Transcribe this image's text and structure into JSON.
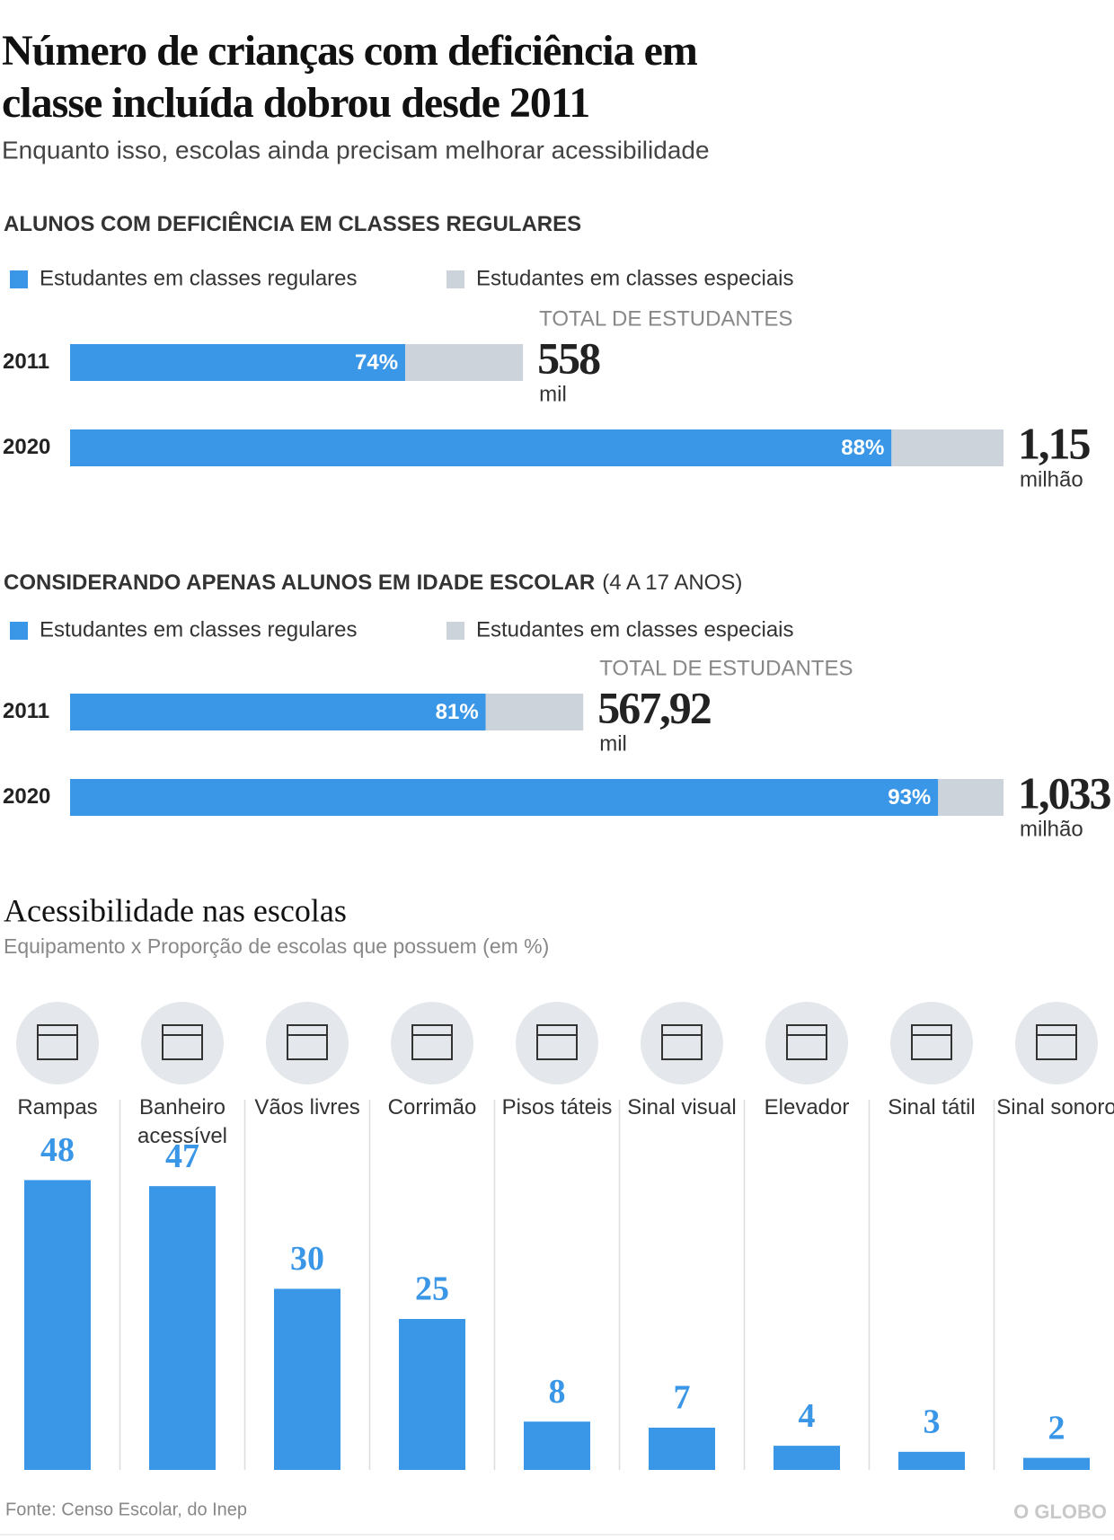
{
  "header": {
    "title": "Número de crianças com deficiência em classe incluída dobrou desde 2011",
    "subtitle": "Enquanto isso, escolas ainda precisam melhorar acessibilidade"
  },
  "chart_data": [
    {
      "type": "bar",
      "orientation": "horizontal",
      "stacked": true,
      "title": "ALUNOS COM DEFICIÊNCIA EM CLASSES REGULARES",
      "categories": [
        "2011",
        "2020"
      ],
      "series": [
        {
          "name": "Estudantes em classes regulares",
          "color": "#3a96e6",
          "values": [
            74,
            88
          ],
          "value_labels": [
            "74%",
            "88%"
          ]
        },
        {
          "name": "Estudantes em classes especiais",
          "color": "#ccd3da",
          "values": [
            26,
            12
          ]
        }
      ],
      "totals_title": "TOTAL DE ESTUDANTES",
      "totals": {
        "values": [
          558000,
          1150000
        ],
        "value_labels": [
          "558",
          "1,15"
        ],
        "units": [
          "mil",
          "milhão"
        ]
      }
    },
    {
      "type": "bar",
      "orientation": "horizontal",
      "stacked": true,
      "title": "CONSIDERANDO APENAS ALUNOS EM IDADE ESCOLAR",
      "title_note": "(4 A 17 ANOS)",
      "categories": [
        "2011",
        "2020"
      ],
      "series": [
        {
          "name": "Estudantes em classes regulares",
          "color": "#3a96e6",
          "values": [
            81,
            93
          ],
          "value_labels": [
            "81%",
            "93%"
          ]
        },
        {
          "name": "Estudantes em classes especiais",
          "color": "#ccd3da",
          "values": [
            19,
            7
          ]
        }
      ],
      "totals_title": "TOTAL DE ESTUDANTES",
      "totals": {
        "values": [
          567920,
          1033000
        ],
        "value_labels": [
          "567,92",
          "1,033"
        ],
        "units": [
          "mil",
          "milhão"
        ]
      }
    },
    {
      "type": "column",
      "title": "Acessibilidade nas escolas",
      "subtitle": "Equipamento x Proporção de escolas que possuem (em %)",
      "categories": [
        "Rampas",
        "Banheiro acessível",
        "Vãos livres",
        "Corrimão",
        "Pisos táteis",
        "Sinal visual",
        "Elevador",
        "Sinal tátil",
        "Sinal sonoro"
      ],
      "values": [
        48,
        47,
        30,
        25,
        8,
        7,
        4,
        3,
        2
      ],
      "color": "#3a96e6"
    }
  ],
  "footer": {
    "source": "Fonte: Censo Escolar, do Inep",
    "logo": "O GLOBO"
  }
}
